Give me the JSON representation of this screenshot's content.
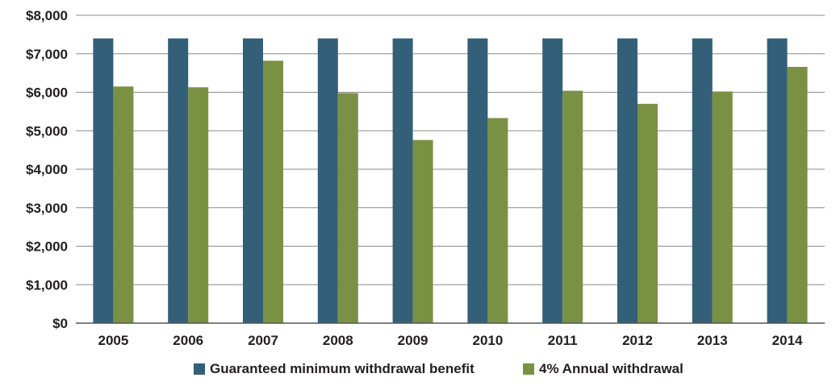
{
  "chart_data": {
    "type": "bar",
    "categories": [
      "2005",
      "2006",
      "2007",
      "2008",
      "2009",
      "2010",
      "2011",
      "2012",
      "2013",
      "2014"
    ],
    "series": [
      {
        "name": "Guaranteed minimum withdrawal benefit",
        "color": "#335F78",
        "values": [
          7400,
          7400,
          7400,
          7400,
          7400,
          7400,
          7400,
          7400,
          7400,
          7400
        ]
      },
      {
        "name": "4% Annual withdrawal",
        "color": "#7A9143",
        "values": [
          6150,
          6130,
          6820,
          5980,
          4760,
          5330,
          6040,
          5700,
          6020,
          6660
        ]
      }
    ],
    "ylim": [
      0,
      8000
    ],
    "yticks": [
      0,
      1000,
      2000,
      3000,
      4000,
      5000,
      6000,
      7000,
      8000
    ],
    "ytick_labels": [
      "$0",
      "$1,000",
      "$2,000",
      "$3,000",
      "$4,000",
      "$5,000",
      "$6,000",
      "$7,000",
      "$8,000"
    ],
    "grid": true,
    "legend_position": "bottom-center",
    "title": "",
    "xlabel": "",
    "ylabel": ""
  }
}
